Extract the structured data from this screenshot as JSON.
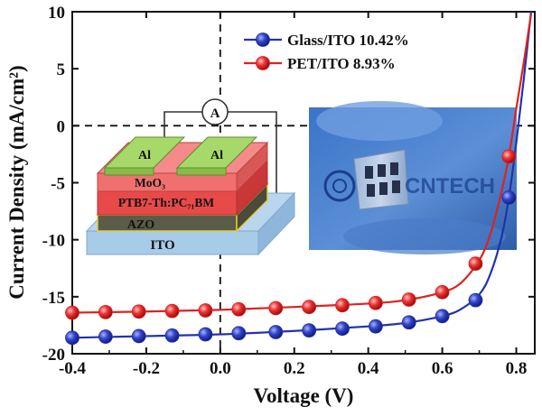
{
  "chart_data": {
    "type": "line",
    "xlabel": "Voltage (V)",
    "ylabel": "Current Density (mA/cm²)",
    "xlim": [
      -0.4,
      0.85
    ],
    "ylim": [
      -20,
      10
    ],
    "x_ticks": [
      "-0.4",
      "-0.2",
      "0.0",
      "0.2",
      "0.4",
      "0.6",
      "0.8"
    ],
    "y_ticks": [
      "10",
      "5",
      "0",
      "-5",
      "-10",
      "-15",
      "-20"
    ],
    "legend_position": "top-right",
    "reference_lines": {
      "y0_dashed": true,
      "x0_dashed": true
    },
    "series": [
      {
        "name": "Glass/ITO 10.42%",
        "color": "#2233aa",
        "marker_x": [
          -0.4,
          -0.31,
          -0.22,
          -0.13,
          -0.04,
          0.05,
          0.15,
          0.24,
          0.33,
          0.42,
          0.51,
          0.6,
          0.69,
          0.78
        ],
        "marker_y": [
          -18.6,
          -18.5,
          -18.45,
          -18.4,
          -18.3,
          -18.2,
          -18.1,
          -17.95,
          -17.8,
          -17.6,
          -17.25,
          -16.7,
          -15.3,
          -6.3
        ],
        "curve_x": [
          -0.4,
          -0.2,
          0.0,
          0.2,
          0.4,
          0.5,
          0.6,
          0.65,
          0.7,
          0.73,
          0.76,
          0.78,
          0.8,
          0.82,
          0.84
        ],
        "curve_y": [
          -18.6,
          -18.45,
          -18.3,
          -18.0,
          -17.6,
          -17.3,
          -16.7,
          -16.1,
          -14.8,
          -13.0,
          -9.8,
          -6.3,
          -1.5,
          4.0,
          10.0
        ]
      },
      {
        "name": "PET/ITO 8.93%",
        "color": "#dd2222",
        "marker_x": [
          -0.4,
          -0.31,
          -0.22,
          -0.13,
          -0.04,
          0.05,
          0.15,
          0.24,
          0.33,
          0.42,
          0.51,
          0.6,
          0.69,
          0.78
        ],
        "marker_y": [
          -16.4,
          -16.35,
          -16.3,
          -16.25,
          -16.2,
          -16.1,
          -16.0,
          -15.9,
          -15.75,
          -15.55,
          -15.25,
          -14.6,
          -12.1,
          -2.7
        ],
        "curve_x": [
          -0.4,
          -0.2,
          0.0,
          0.2,
          0.4,
          0.5,
          0.6,
          0.65,
          0.7,
          0.73,
          0.76,
          0.78,
          0.8,
          0.82,
          0.84
        ],
        "curve_y": [
          -16.4,
          -16.3,
          -16.15,
          -15.9,
          -15.6,
          -15.3,
          -14.6,
          -13.8,
          -11.8,
          -9.5,
          -5.8,
          -2.7,
          1.5,
          5.5,
          9.8
        ]
      }
    ]
  },
  "inset": {
    "device_labels": {
      "al_left": "Al",
      "al_right": "Al",
      "moo3": "MoO₃",
      "active": "PTB7-Th:PC₇₁BM",
      "azo": "AZO",
      "ito": "ITO",
      "ammeter": "A"
    },
    "photo_logo_text": "CNTECH"
  }
}
